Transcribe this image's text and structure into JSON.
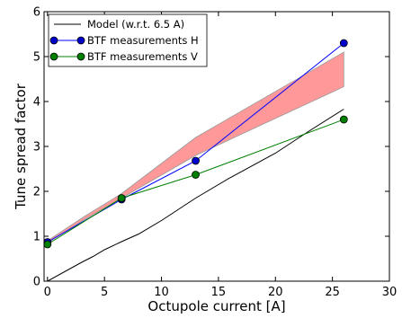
{
  "chart_data": {
    "type": "line",
    "title": "",
    "xlabel": "Octupole current [A]",
    "ylabel": "Tune spread factor",
    "xlim": [
      -0.3,
      30
    ],
    "ylim": [
      0,
      6
    ],
    "xticks": [
      0,
      5,
      10,
      15,
      20,
      25,
      30
    ],
    "yticks": [
      0,
      1,
      2,
      3,
      4,
      5,
      6
    ],
    "grid": false,
    "legend_position": "top-left",
    "band": {
      "color": "#ff9999",
      "x": [
        0,
        3.3,
        6.5,
        13,
        26
      ],
      "lower": [
        0.85,
        1.38,
        1.85,
        2.8,
        4.33
      ],
      "upper": [
        0.9,
        1.45,
        1.95,
        3.2,
        5.1
      ]
    },
    "series": [
      {
        "name": "Model (w.r.t. 6.5 A)",
        "color": "#000000",
        "marker": "none",
        "x": [
          0,
          3,
          4,
          5,
          6.5,
          8,
          10,
          13,
          16,
          20,
          23,
          26
        ],
        "y": [
          0.0,
          0.42,
          0.55,
          0.7,
          0.88,
          1.05,
          1.35,
          1.85,
          2.3,
          2.85,
          3.35,
          3.83
        ]
      },
      {
        "name": "BTF measurements H",
        "color": "#0000ff",
        "markerFill": "#0000cc",
        "marker": "circle",
        "x": [
          0,
          6.5,
          13,
          26
        ],
        "y": [
          0.87,
          1.82,
          2.68,
          5.3
        ]
      },
      {
        "name": "BTF measurements V",
        "color": "#008000",
        "markerFill": "#008000",
        "marker": "circle",
        "x": [
          0,
          6.5,
          13,
          26
        ],
        "y": [
          0.82,
          1.85,
          2.37,
          3.6
        ]
      }
    ]
  }
}
